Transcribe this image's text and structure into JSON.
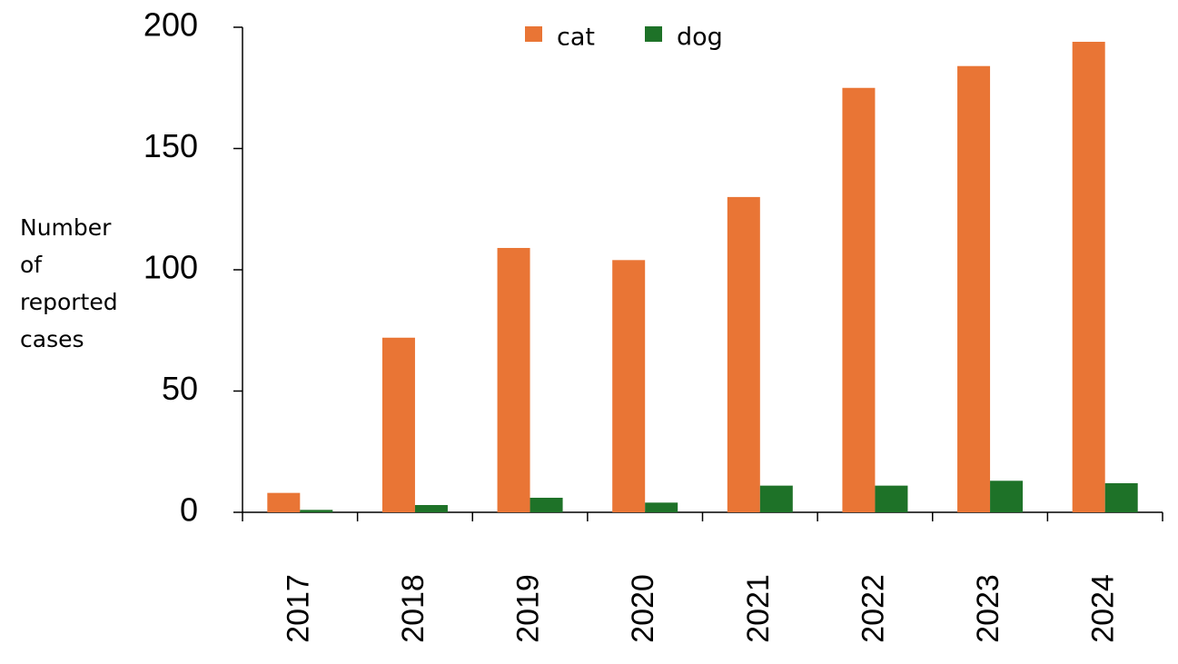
{
  "chart_data": {
    "type": "bar",
    "y_label": "Number of reported cases",
    "categories": [
      "2017",
      "2018",
      "2019",
      "2020",
      "2021",
      "2022",
      "2023",
      "2024"
    ],
    "series": [
      {
        "name": "cat",
        "color": "#e97535",
        "values": [
          8,
          72,
          109,
          104,
          130,
          175,
          184,
          194
        ]
      },
      {
        "name": "dog",
        "color": "#1e7228",
        "values": [
          1,
          3,
          6,
          4,
          11,
          11,
          13,
          12
        ]
      }
    ],
    "ylim": [
      0,
      200
    ],
    "yticks": [
      0,
      50,
      100,
      150,
      200
    ],
    "grid": false,
    "legend": "top"
  }
}
